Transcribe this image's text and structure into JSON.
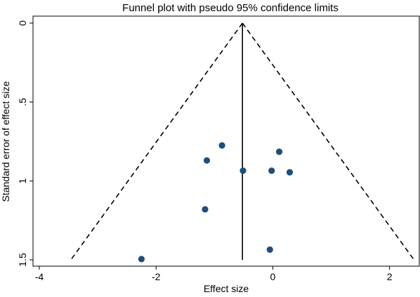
{
  "chart_data": {
    "type": "scatter",
    "title": "Funnel plot with pseudo 95% confidence limits",
    "xlabel": "Effect size",
    "ylabel": "Standard error of effect size",
    "xlim": [
      -4.0,
      2.45
    ],
    "ylim": [
      1.5,
      0
    ],
    "y_reversed": true,
    "x_ticks": [
      -4,
      -2,
      0,
      2
    ],
    "x_tick_labels": [
      "-4",
      "-2",
      "0",
      "2"
    ],
    "y_ticks": [
      0,
      0.5,
      1,
      1.5
    ],
    "y_tick_labels": [
      "0",
      ".5",
      "1",
      "1.5"
    ],
    "grid": false,
    "points": [
      {
        "x": -0.87,
        "y": 0.775
      },
      {
        "x": 0.11,
        "y": 0.815
      },
      {
        "x": -1.13,
        "y": 0.87
      },
      {
        "x": -0.51,
        "y": 0.935
      },
      {
        "x": -0.02,
        "y": 0.935
      },
      {
        "x": 0.29,
        "y": 0.945
      },
      {
        "x": -1.16,
        "y": 1.18
      },
      {
        "x": -0.05,
        "y": 1.435
      },
      {
        "x": -2.25,
        "y": 1.495
      }
    ],
    "pooled_effect": -0.52,
    "ci_multiplier": 1.96,
    "point_color": "#1f4e79",
    "line_color": "#000000"
  }
}
